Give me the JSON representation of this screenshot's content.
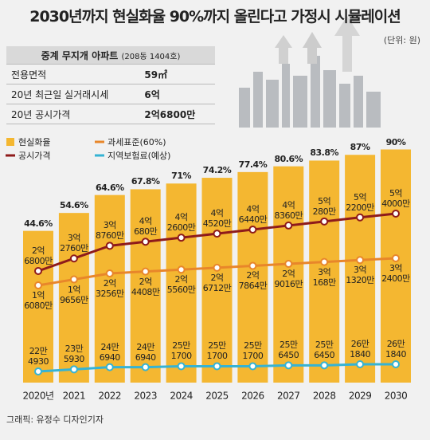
{
  "chart_data": {
    "type": "bar",
    "title": "2030년까지 현실화율 90%까지 올린다고 가정시 시뮬레이션",
    "unit_note": "(단위: 원)",
    "categories": [
      "2020년",
      "2021",
      "2022",
      "2023",
      "2024",
      "2025",
      "2026",
      "2027",
      "2028",
      "2029",
      "2030"
    ],
    "series": [
      {
        "name": "현실화율",
        "type": "bar",
        "color": "#f4b731",
        "values": [
          44.6,
          54.6,
          64.6,
          67.8,
          71,
          74.2,
          77.4,
          80.6,
          83.8,
          87,
          90
        ],
        "value_labels": [
          "44.6%",
          "54.6%",
          "64.6%",
          "67.8%",
          "71%",
          "74.2%",
          "77.4%",
          "80.6%",
          "83.8%",
          "87%",
          "90%"
        ]
      },
      {
        "name": "과세표준(60%)",
        "type": "line",
        "color": "#e8862a",
        "values": [
          160800000,
          196560000,
          232560000,
          244080000,
          255600000,
          267120000,
          278640000,
          290160000,
          301680000,
          313200000,
          324000000
        ],
        "value_labels": [
          "1억\n6080만",
          "1억\n9656만",
          "2억\n3256만",
          "2억\n4408만",
          "2억\n5560만",
          "2억\n6712만",
          "2억\n7864만",
          "2억\n9016만",
          "3억\n168만",
          "3억\n1320만",
          "3억\n2400만"
        ]
      },
      {
        "name": "공시가격",
        "type": "line",
        "color": "#8e1b1b",
        "values": [
          268000000,
          327600000,
          387600000,
          406800000,
          426000000,
          445200000,
          464400000,
          483600000,
          502800000,
          522000000,
          540000000
        ],
        "value_labels": [
          "2억\n6800만",
          "3억\n2760만",
          "3억\n8760만",
          "4억\n680만",
          "4억\n2600만",
          "4억\n4520만",
          "4억\n6440만",
          "4억\n8360만",
          "5억\n280만",
          "5억\n2200만",
          "5억\n4000만"
        ]
      },
      {
        "name": "지역보험료(예상)",
        "type": "line",
        "color": "#35b3d4",
        "values": [
          224930,
          235930,
          246940,
          246940,
          251700,
          251700,
          251700,
          256450,
          256450,
          261840,
          261840
        ],
        "value_labels": [
          "22만\n4930",
          "23만\n5930",
          "24만\n6940",
          "24만\n6940",
          "25만\n1700",
          "25만\n1700",
          "25만\n1700",
          "25만\n6450",
          "25만\n6450",
          "26만\n1840",
          "26만\n1840"
        ]
      }
    ]
  },
  "info_table": {
    "title": "중계 무지개 아파트",
    "subtitle": "(208동 1404호)",
    "rows": [
      [
        "전용면적",
        "59㎡"
      ],
      [
        "20년 최근일 실거래시세",
        "6억"
      ],
      [
        "20년 공시가격",
        "2억6800만"
      ]
    ]
  },
  "credit": "그래픽: 유정수 디자인기자"
}
